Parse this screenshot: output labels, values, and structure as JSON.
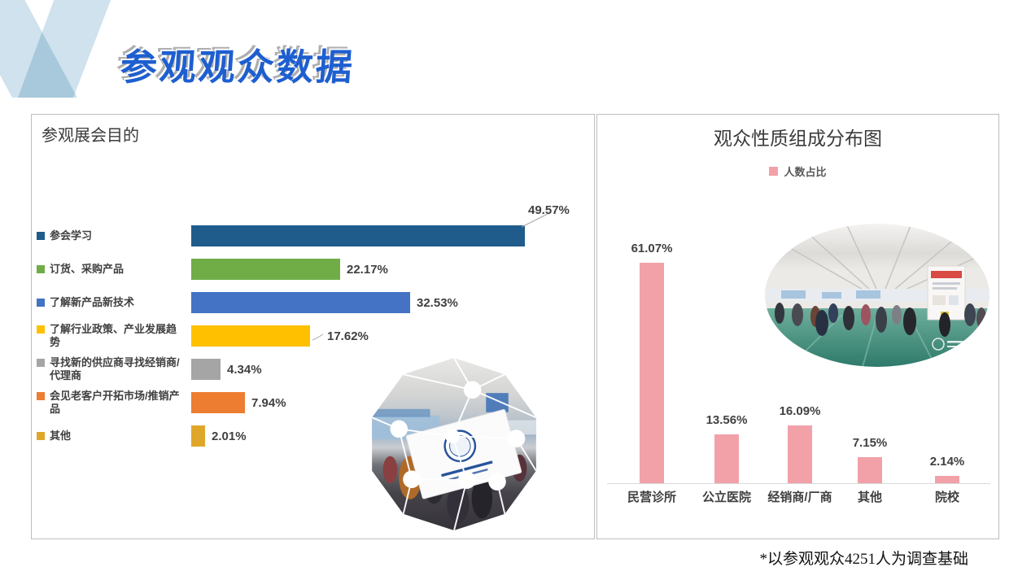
{
  "page": {
    "title": "参观观众数据",
    "footer_note": "*以参观观众4251人为调查基础"
  },
  "colors": {
    "title_blue": "#1E5FD0",
    "title_shadow": "#AEAEAE",
    "panel_border": "#BDBDBD",
    "text_dark": "#404040",
    "logo_light_blue": "#CFE2ED",
    "logo_overlap_blue": "#A8C8DC",
    "axis_gray": "#D9D9D9",
    "bar_pink": "#F2A1A8"
  },
  "decor": {
    "logo_icon": "v-ribbon-logo",
    "left_photo": "exhibition-crowd-photo-polygon",
    "right_photo": "exhibition-hall-photo-ellipse"
  },
  "chart_data": [
    {
      "type": "bar",
      "orientation": "horizontal",
      "title": "参观展会目的",
      "categories": [
        "参会学习",
        "订货、采购产品",
        "了解新产品新技术",
        "了解行业政策、产业发展趋势",
        "寻找新的供应商寻找经销商/代理商",
        "会见老客户开拓市场/推销产品",
        "其他"
      ],
      "values": [
        49.57,
        22.17,
        32.53,
        17.62,
        4.34,
        7.94,
        2.01
      ],
      "value_labels": [
        "49.57%",
        "22.17%",
        "32.53%",
        "17.62%",
        "4.34%",
        "7.94%",
        "2.01%"
      ],
      "bar_colors": [
        "#1F5C8B",
        "#70AD47",
        "#4472C4",
        "#FFC000",
        "#A5A5A5",
        "#ED7D31",
        "#DFA72A"
      ],
      "xlim": [
        0,
        55
      ],
      "grid": false,
      "legend_position": "left-of-bars",
      "value_label_position": "end-of-bar"
    },
    {
      "type": "bar",
      "orientation": "vertical",
      "title": "观众性质组成分布图",
      "legend": "人数占比",
      "legend_position": "top-center",
      "series_color": "#F2A1A8",
      "categories": [
        "民营诊所",
        "公立医院",
        "经销商/厂商",
        "其他",
        "院校"
      ],
      "values": [
        61.07,
        13.56,
        16.09,
        7.15,
        2.14
      ],
      "value_labels": [
        "61.07%",
        "13.56%",
        "16.09%",
        "7.15%",
        "2.14%"
      ],
      "ylim": [
        0,
        65
      ],
      "grid": false,
      "value_label_position": "above-bar"
    }
  ]
}
